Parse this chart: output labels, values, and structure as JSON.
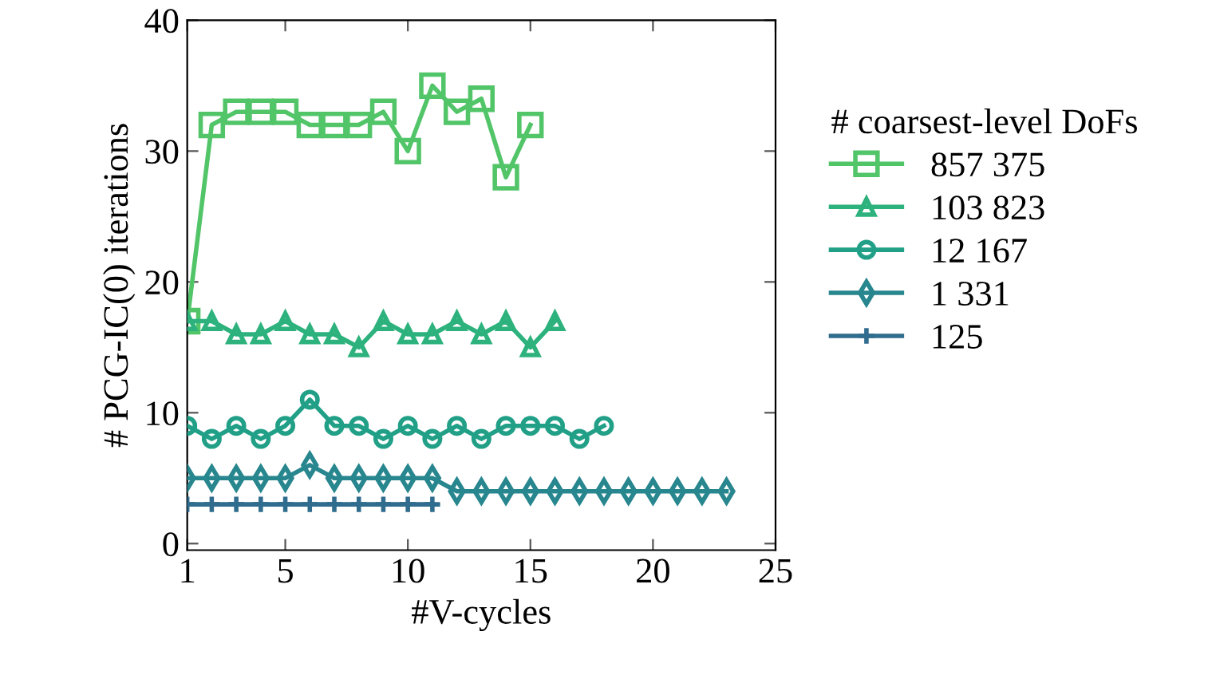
{
  "chart_data": {
    "type": "line",
    "xlabel": "#V-cycles",
    "ylabel": "# PCG-IC(0) iterations",
    "legend_title": "# coarsest-level DoFs",
    "legend": "right",
    "grid": false,
    "xlim": [
      1,
      25
    ],
    "xticks": [
      1,
      5,
      10,
      15,
      20,
      25
    ],
    "ylim": [
      -0.5,
      40
    ],
    "yticks": [
      0,
      10,
      20,
      30,
      40
    ],
    "series": [
      {
        "name": "857 375",
        "color": "#52c569",
        "marker": "square",
        "x": [
          1,
          2,
          3,
          4,
          5,
          6,
          7,
          8,
          9,
          10,
          11,
          12,
          13,
          14,
          15
        ],
        "values": [
          17,
          32,
          33,
          33,
          33,
          32,
          32,
          32,
          33,
          30,
          35,
          33,
          34,
          28,
          32
        ]
      },
      {
        "name": "103 823",
        "color": "#2db27d",
        "marker": "triangle",
        "x": [
          1,
          2,
          3,
          4,
          5,
          6,
          7,
          8,
          9,
          10,
          11,
          12,
          13,
          14,
          15,
          16
        ],
        "values": [
          17,
          17,
          16,
          16,
          17,
          16,
          16,
          15,
          17,
          16,
          16,
          17,
          16,
          17,
          15,
          17
        ]
      },
      {
        "name": "12 167",
        "color": "#21a087",
        "marker": "circle",
        "x": [
          1,
          2,
          3,
          4,
          5,
          6,
          7,
          8,
          9,
          10,
          11,
          12,
          13,
          14,
          15,
          16,
          17,
          18
        ],
        "values": [
          9,
          8,
          9,
          8,
          9,
          11,
          9,
          9,
          8,
          9,
          8,
          9,
          8,
          9,
          9,
          9,
          8,
          9
        ]
      },
      {
        "name": "1 331",
        "color": "#27868e",
        "marker": "diamond",
        "x": [
          1,
          2,
          3,
          4,
          5,
          6,
          7,
          8,
          9,
          10,
          11,
          12,
          13,
          14,
          15,
          16,
          17,
          18,
          19,
          20,
          21,
          22,
          23
        ],
        "values": [
          5,
          5,
          5,
          5,
          5,
          6,
          5,
          5,
          5,
          5,
          5,
          4,
          4,
          4,
          4,
          4,
          4,
          4,
          4,
          4,
          4,
          4,
          4
        ]
      },
      {
        "name": "125",
        "color": "#2f6c8e",
        "marker": "cross",
        "x": [
          1,
          2,
          3,
          4,
          5,
          6,
          7,
          8,
          9,
          10,
          11
        ],
        "values": [
          3,
          3,
          3,
          3,
          3,
          3,
          3,
          3,
          3,
          3,
          3
        ]
      }
    ]
  }
}
